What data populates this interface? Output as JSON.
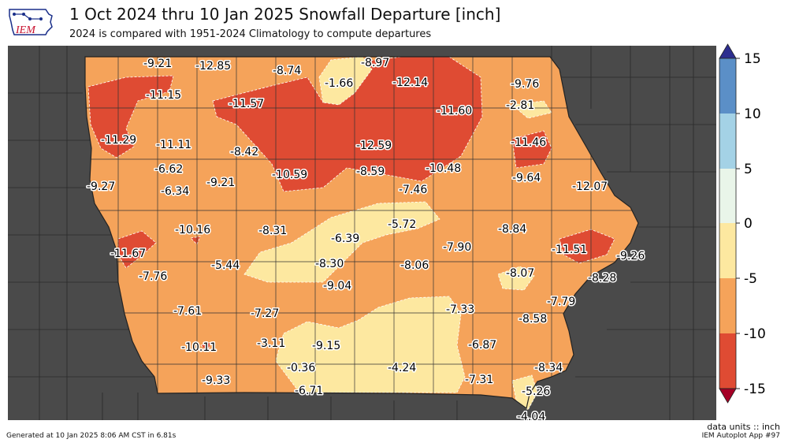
{
  "header": {
    "logo_text": "IEM",
    "title": "1 Oct 2024 thru 10 Jan 2025 Snowfall Departure [inch]",
    "subtitle": "2024 is compared with 1951-2024 Climatology to compute departures"
  },
  "colorbar": {
    "ticks": [
      "15",
      "10",
      "5",
      "0",
      "-5",
      "-10",
      "-15"
    ],
    "bins": [
      {
        "range": "10 to 15",
        "color": "#5b8fc7"
      },
      {
        "range": "5 to 10",
        "color": "#a4d2e6"
      },
      {
        "range": "0 to 5",
        "color": "#e9f5e9"
      },
      {
        "range": "-5 to 0",
        "color": "#fde8a0"
      },
      {
        "range": "-10 to -5",
        "color": "#f5a35a"
      },
      {
        "range": "-15 to -10",
        "color": "#df4b33"
      }
    ],
    "over_color": "#2d2e8f",
    "under_color": "#a50026"
  },
  "footer": {
    "units": "data units :: inch",
    "generated": "Generated at 10 Jan 2025 8:06 AM CST in 6.81s",
    "app": "IEM Autoplot App #97"
  },
  "colors": {
    "background_states": "#4a4a4a",
    "red": "#df4b33",
    "orange": "#f5a35a",
    "yellow": "#fde8a0"
  },
  "map_values": [
    "-9.21",
    "-12.85",
    "-8.74",
    "-8.97",
    "-1.66",
    "-12.14",
    "-9.76",
    "-11.15",
    "-11.57",
    "-11.60",
    "-2.81",
    "-11.29",
    "-11.11",
    "-8.42",
    "-12.59",
    "-11.46",
    "-6.62",
    "-10.59",
    "-8.59",
    "-10.48",
    "-9.64",
    "-9.27",
    "-6.34",
    "-9.21",
    "-7.46",
    "-12.07",
    "-5.72",
    "-10.16",
    "-8.31",
    "-6.39",
    "-8.84",
    "-11.67",
    "-7.90",
    "-11.51",
    "-9.26",
    "-5.44",
    "-8.30",
    "-8.06",
    "-7.76",
    "-8.07",
    "-8.28",
    "-9.04",
    "-7.79",
    "-7.61",
    "-7.27",
    "-7.33",
    "-8.58",
    "-10.11",
    "-3.11",
    "-9.15",
    "-6.87",
    "-0.36",
    "-4.24",
    "-8.34",
    "-9.33",
    "-7.31",
    "-5.26",
    "-6.71",
    "-4.04"
  ]
}
